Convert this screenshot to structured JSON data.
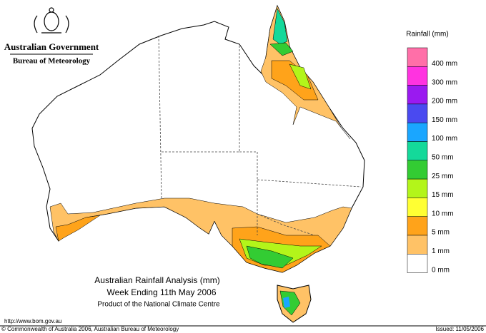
{
  "header": {
    "government": "Australian Government",
    "bureau": "Bureau of Meteorology"
  },
  "legend": {
    "title": "Rainfall (mm)",
    "items": [
      {
        "label": "400 mm",
        "color": "#ff6fa8"
      },
      {
        "label": "300 mm",
        "color": "#ff33e0"
      },
      {
        "label": "200 mm",
        "color": "#9a1af0"
      },
      {
        "label": "150 mm",
        "color": "#4a4af0"
      },
      {
        "label": "100 mm",
        "color": "#1aa6ff"
      },
      {
        "label": "50 mm",
        "color": "#14d99a"
      },
      {
        "label": "25 mm",
        "color": "#33cc33"
      },
      {
        "label": "15 mm",
        "color": "#b3f51a"
      },
      {
        "label": "10 mm",
        "color": "#ffff33"
      },
      {
        "label": "5 mm",
        "color": "#ffa31a"
      },
      {
        "label": "1 mm",
        "color": "#ffc266"
      },
      {
        "label": "0 mm",
        "color": "#ffffff"
      }
    ]
  },
  "map_title": {
    "line1": "Australian Rainfall Analysis (mm)",
    "line2": "Week Ending 11th May 2006",
    "line3": "Product of the National Climate Centre"
  },
  "footer": {
    "url": "http://www.bom.gov.au",
    "copyright": "© Commonwealth of Australia 2006, Australian Bureau of Meteorology",
    "issued": "Issued: 11/05/2006"
  }
}
